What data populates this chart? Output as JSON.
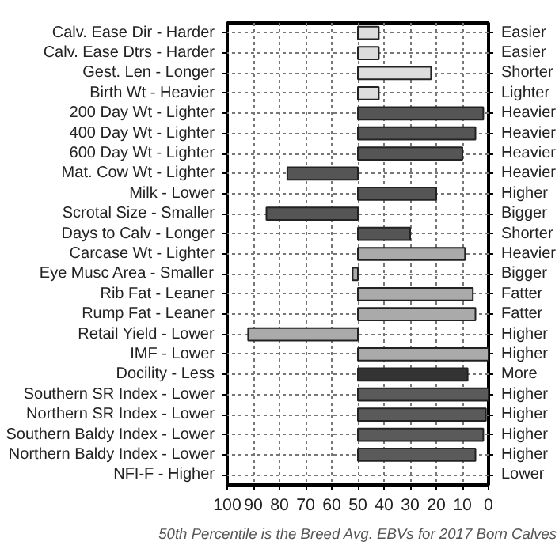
{
  "chart_data": {
    "type": "bar",
    "orientation": "horizontal",
    "categories": [
      "Calv. Ease Dir - Harder",
      "Calv. Ease Dtrs - Harder",
      "Gest. Len - Longer",
      "Birth Wt - Heavier",
      "200 Day Wt - Lighter",
      "400 Day Wt - Lighter",
      "600 Day Wt - Lighter",
      "Mat. Cow Wt - Lighter",
      "Milk - Lower",
      "Scrotal Size - Smaller",
      "Days to Calv - Longer",
      "Carcase Wt - Lighter",
      "Eye Musc Area - Smaller",
      "Rib Fat - Leaner",
      "Rump Fat - Leaner",
      "Retail Yield - Lower",
      "IMF - Lower",
      "Docility - Less",
      "Southern SR Index - Lower",
      "Northern SR Index - Lower",
      "Southern Baldy Index - Lower",
      "Northern Baldy Index - Lower",
      "NFI-F - Higher"
    ],
    "y2_categories": [
      "Easier",
      "Easier",
      "Shorter",
      "Lighter",
      "Heavier",
      "Heavier",
      "Heavier",
      "Heavier",
      "Higher",
      "Bigger",
      "Shorter",
      "Heavier",
      "Bigger",
      "Fatter",
      "Fatter",
      "Higher",
      "Higher",
      "More",
      "Higher",
      "Higher",
      "Higher",
      "Higher",
      "Lower"
    ],
    "base": [
      50,
      50,
      50,
      50,
      50,
      50,
      50,
      50,
      50,
      50,
      50,
      50,
      50,
      50,
      50,
      50,
      50,
      50,
      50,
      50,
      50,
      50,
      null
    ],
    "values": [
      -8,
      -8,
      -28,
      -8,
      -48,
      -45,
      -40,
      27,
      -30,
      35,
      -20,
      -41,
      2,
      -44,
      -45,
      42,
      -50,
      -42,
      -50,
      -49,
      -48,
      -45,
      null
    ],
    "colors": [
      "#dddddd",
      "#dddddd",
      "#dddddd",
      "#dddddd",
      "#555555",
      "#555555",
      "#555555",
      "#555555",
      "#555555",
      "#555555",
      "#555555",
      "#aaaaaa",
      "#aaaaaa",
      "#aaaaaa",
      "#aaaaaa",
      "#aaaaaa",
      "#aaaaaa",
      "#333333",
      "#5a5a5a",
      "#5a5a5a",
      "#5a5a5a",
      "#5a5a5a",
      "#5a5a5a"
    ],
    "xlim": [
      100,
      0
    ],
    "xticks": [
      0,
      10,
      20,
      30,
      40,
      50,
      60,
      70,
      80,
      90,
      100
    ],
    "grid": true,
    "annotations": [
      "50th Percentile is the Breed Avg. EBVs for 2017 Born Calves"
    ]
  }
}
